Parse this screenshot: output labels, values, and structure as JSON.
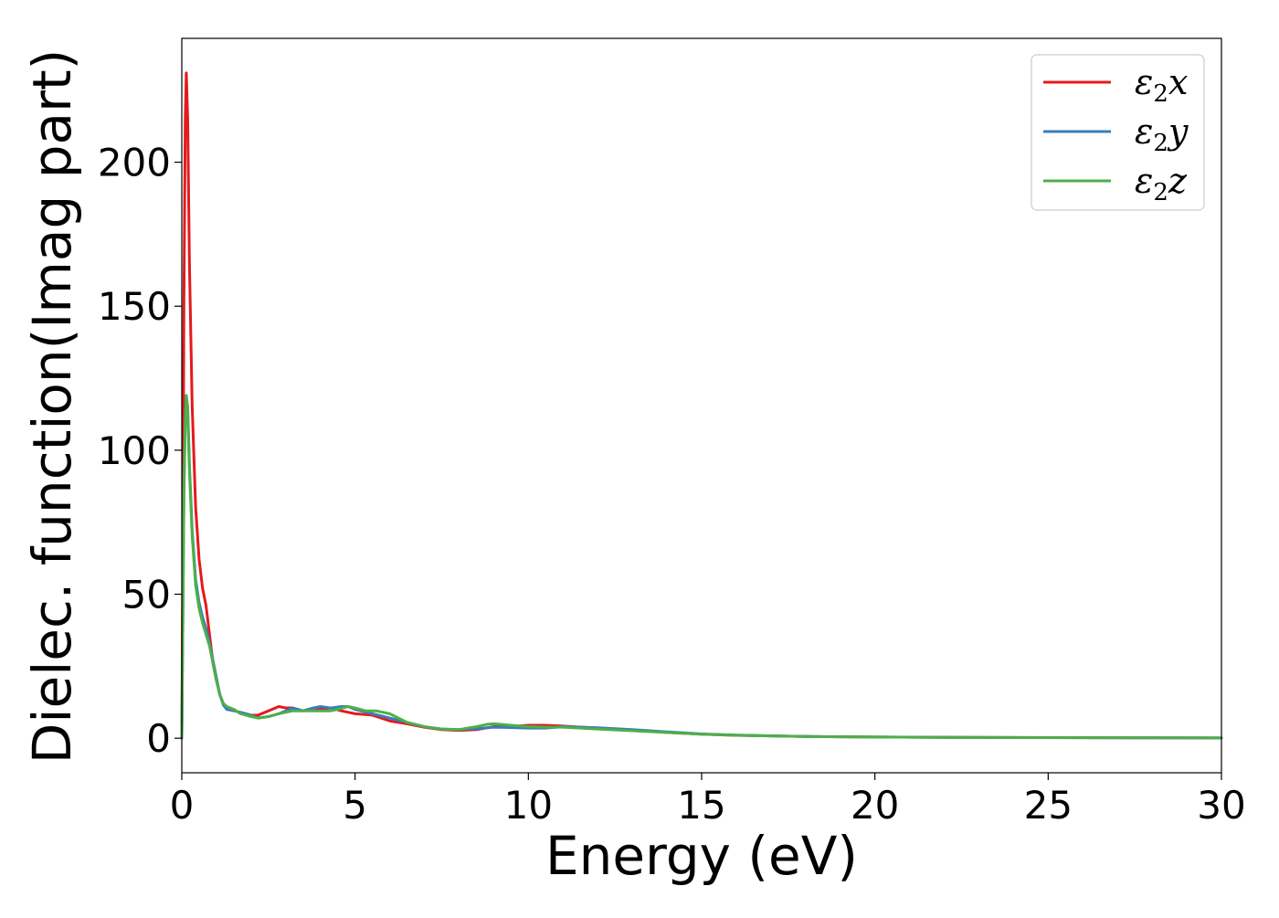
{
  "chart_data": {
    "type": "line",
    "title": "",
    "xlabel": "Energy (eV)",
    "ylabel": "Dielec. function(Imag part)",
    "xlim": [
      0,
      30
    ],
    "ylim": [
      -12,
      243
    ],
    "x_ticks": [
      0,
      5,
      10,
      15,
      20,
      25,
      30
    ],
    "x_tick_labels": [
      "0",
      "5",
      "10",
      "15",
      "20",
      "25",
      "30"
    ],
    "y_ticks": [
      0,
      50,
      100,
      150,
      200
    ],
    "y_tick_labels": [
      "0",
      "50",
      "100",
      "150",
      "200"
    ],
    "grid": false,
    "legend_position": "top-right",
    "series": [
      {
        "name": "ε2x",
        "legend_base": "ε",
        "legend_sub": "2",
        "legend_suffix": "x",
        "color": "#e41a1c",
        "points": [
          [
            0,
            0
          ],
          [
            0.03,
            60
          ],
          [
            0.06,
            150
          ],
          [
            0.1,
            215
          ],
          [
            0.13,
            231
          ],
          [
            0.17,
            215
          ],
          [
            0.22,
            165
          ],
          [
            0.3,
            115
          ],
          [
            0.4,
            80
          ],
          [
            0.5,
            62
          ],
          [
            0.6,
            52
          ],
          [
            0.7,
            46
          ],
          [
            0.8,
            36
          ],
          [
            0.9,
            26
          ],
          [
            1.0,
            20
          ],
          [
            1.1,
            15
          ],
          [
            1.2,
            12
          ],
          [
            1.3,
            10.5
          ],
          [
            1.5,
            10
          ],
          [
            1.7,
            8.5
          ],
          [
            2.0,
            8
          ],
          [
            2.2,
            8
          ],
          [
            2.5,
            9.5
          ],
          [
            2.8,
            11
          ],
          [
            3.0,
            10.5
          ],
          [
            3.2,
            10.5
          ],
          [
            3.5,
            9.5
          ],
          [
            3.8,
            10.5
          ],
          [
            4.0,
            10
          ],
          [
            4.3,
            10.5
          ],
          [
            4.6,
            9.5
          ],
          [
            5.0,
            8.5
          ],
          [
            5.5,
            8
          ],
          [
            6.0,
            6
          ],
          [
            6.5,
            5
          ],
          [
            7.0,
            3.8
          ],
          [
            7.5,
            3
          ],
          [
            8.0,
            2.7
          ],
          [
            8.5,
            3
          ],
          [
            9.0,
            4
          ],
          [
            9.5,
            4
          ],
          [
            10.0,
            4.5
          ],
          [
            10.5,
            4.5
          ],
          [
            11.0,
            4.2
          ],
          [
            12.0,
            3.5
          ],
          [
            13.0,
            2.8
          ],
          [
            14.0,
            2
          ],
          [
            15.0,
            1.4
          ],
          [
            16.0,
            1
          ],
          [
            17.0,
            0.8
          ],
          [
            18.0,
            0.6
          ],
          [
            20.0,
            0.4
          ],
          [
            22.0,
            0.3
          ],
          [
            25.0,
            0.2
          ],
          [
            30.0,
            0.1
          ]
        ]
      },
      {
        "name": "ε2y",
        "legend_base": "ε",
        "legend_sub": "2",
        "legend_suffix": "y",
        "color": "#377eb8",
        "points": [
          [
            0,
            0
          ],
          [
            0.03,
            40
          ],
          [
            0.06,
            85
          ],
          [
            0.1,
            110
          ],
          [
            0.13,
            119
          ],
          [
            0.17,
            115
          ],
          [
            0.22,
            95
          ],
          [
            0.3,
            72
          ],
          [
            0.4,
            55
          ],
          [
            0.5,
            47
          ],
          [
            0.6,
            42
          ],
          [
            0.7,
            38
          ],
          [
            0.8,
            33
          ],
          [
            0.9,
            27
          ],
          [
            1.0,
            21
          ],
          [
            1.1,
            15
          ],
          [
            1.2,
            11.5
          ],
          [
            1.3,
            10
          ],
          [
            1.5,
            9.5
          ],
          [
            1.7,
            9
          ],
          [
            2.0,
            8
          ],
          [
            2.2,
            7
          ],
          [
            2.5,
            7.5
          ],
          [
            2.8,
            8.5
          ],
          [
            3.0,
            9.5
          ],
          [
            3.2,
            10.5
          ],
          [
            3.5,
            9.5
          ],
          [
            3.8,
            10.5
          ],
          [
            4.0,
            11
          ],
          [
            4.3,
            10.5
          ],
          [
            4.6,
            11
          ],
          [
            4.8,
            11
          ],
          [
            5.0,
            10
          ],
          [
            5.5,
            8.5
          ],
          [
            6.0,
            7
          ],
          [
            6.5,
            5.5
          ],
          [
            7.0,
            4
          ],
          [
            7.5,
            3.2
          ],
          [
            8.0,
            3
          ],
          [
            8.5,
            3.3
          ],
          [
            9.0,
            3.8
          ],
          [
            9.5,
            3.7
          ],
          [
            10.0,
            3.5
          ],
          [
            10.5,
            3.5
          ],
          [
            11.0,
            4
          ],
          [
            12.0,
            3.6
          ],
          [
            13.0,
            3
          ],
          [
            14.0,
            2.2
          ],
          [
            15.0,
            1.5
          ],
          [
            16.0,
            1.1
          ],
          [
            17.0,
            0.8
          ],
          [
            18.0,
            0.6
          ],
          [
            20.0,
            0.4
          ],
          [
            22.0,
            0.3
          ],
          [
            25.0,
            0.2
          ],
          [
            30.0,
            0.1
          ]
        ]
      },
      {
        "name": "ε2z",
        "legend_base": "ε",
        "legend_sub": "2",
        "legend_suffix": "z",
        "color": "#4daf4a",
        "points": [
          [
            0,
            0
          ],
          [
            0.03,
            40
          ],
          [
            0.06,
            85
          ],
          [
            0.1,
            110
          ],
          [
            0.13,
            119
          ],
          [
            0.17,
            114
          ],
          [
            0.22,
            93
          ],
          [
            0.3,
            70
          ],
          [
            0.4,
            53
          ],
          [
            0.5,
            45
          ],
          [
            0.6,
            40
          ],
          [
            0.7,
            36
          ],
          [
            0.8,
            32
          ],
          [
            0.9,
            26
          ],
          [
            1.0,
            20
          ],
          [
            1.1,
            15
          ],
          [
            1.2,
            12
          ],
          [
            1.3,
            11
          ],
          [
            1.5,
            10
          ],
          [
            1.7,
            8.5
          ],
          [
            2.0,
            7.5
          ],
          [
            2.2,
            7
          ],
          [
            2.5,
            7.5
          ],
          [
            2.8,
            8.5
          ],
          [
            3.0,
            9
          ],
          [
            3.2,
            9.5
          ],
          [
            3.5,
            9.5
          ],
          [
            3.8,
            9.5
          ],
          [
            4.0,
            9.5
          ],
          [
            4.3,
            9.5
          ],
          [
            4.5,
            10
          ],
          [
            4.8,
            11
          ],
          [
            5.0,
            10.5
          ],
          [
            5.3,
            9.5
          ],
          [
            5.6,
            9.5
          ],
          [
            6.0,
            8.5
          ],
          [
            6.5,
            5.5
          ],
          [
            7.0,
            4
          ],
          [
            7.5,
            3.2
          ],
          [
            8.0,
            3
          ],
          [
            8.5,
            4
          ],
          [
            8.8,
            4.8
          ],
          [
            9.0,
            5
          ],
          [
            9.5,
            4.5
          ],
          [
            10.0,
            4
          ],
          [
            10.5,
            3.8
          ],
          [
            11.0,
            3.8
          ],
          [
            12.0,
            3.2
          ],
          [
            13.0,
            2.6
          ],
          [
            14.0,
            2
          ],
          [
            15.0,
            1.4
          ],
          [
            16.0,
            1
          ],
          [
            17.0,
            0.8
          ],
          [
            18.0,
            0.6
          ],
          [
            20.0,
            0.4
          ],
          [
            22.0,
            0.3
          ],
          [
            25.0,
            0.2
          ],
          [
            30.0,
            0.1
          ]
        ]
      }
    ]
  }
}
